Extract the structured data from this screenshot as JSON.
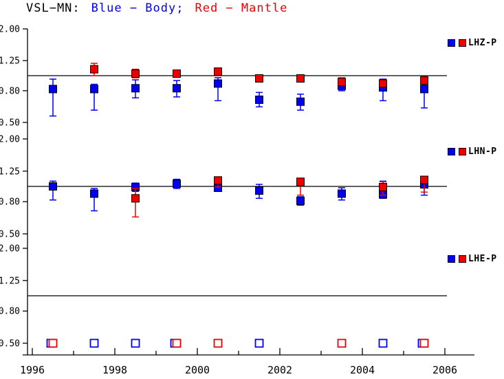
{
  "chart_data": {
    "type": "scatter",
    "title": {
      "prefix": "VSL−MN:",
      "body_label": "Blue − Body;",
      "mantle_label": "Red − Mantle"
    },
    "colors": {
      "body_blue": "#0000ee",
      "mantle_red": "#ee0000",
      "axis_black": "#000000"
    },
    "x_axis": {
      "min": 1996,
      "max": 2006,
      "major_ticks": [
        1996,
        1998,
        2000,
        2002,
        2004,
        2006
      ],
      "tick_labels": [
        "1996",
        "1998",
        "2000",
        "2002",
        "2004",
        "2006"
      ],
      "minor_ticks": [
        1997,
        1999,
        2001,
        2003,
        2005
      ]
    },
    "y_axis": {
      "scale": "log",
      "min": 0.5,
      "max": 2.0,
      "ticks": [
        2.0,
        1.25,
        0.8,
        0.5
      ],
      "tick_labels": [
        "2.00",
        "1.25",
        "0.80",
        "0.50"
      ],
      "reference_line": 1.0
    },
    "panels": [
      {
        "label": "LHZ-P",
        "blue_points": [
          {
            "x": 1996.5,
            "y": 0.82,
            "lo": 0.55,
            "hi": 0.95
          },
          {
            "x": 1997.5,
            "y": 0.82,
            "lo": 0.6,
            "hi": 0.88
          },
          {
            "x": 1998.5,
            "y": 0.83,
            "lo": 0.72,
            "hi": 0.94
          },
          {
            "x": 1999.5,
            "y": 0.83,
            "lo": 0.73,
            "hi": 0.93
          },
          {
            "x": 2000.5,
            "y": 0.89,
            "lo": 0.69,
            "hi": 0.97
          },
          {
            "x": 2001.5,
            "y": 0.7,
            "lo": 0.63,
            "hi": 0.78
          },
          {
            "x": 2002.5,
            "y": 0.68,
            "lo": 0.6,
            "hi": 0.76
          },
          {
            "x": 2003.5,
            "y": 0.86,
            "lo": 0.8,
            "hi": 0.92
          },
          {
            "x": 2004.5,
            "y": 0.84,
            "lo": 0.69,
            "hi": 0.95
          },
          {
            "x": 2005.5,
            "y": 0.82,
            "lo": 0.62,
            "hi": 0.95
          }
        ],
        "red_points": [
          {
            "x": 1997.5,
            "y": 1.1,
            "lo": 1.0,
            "hi": 1.2
          },
          {
            "x": 1998.5,
            "y": 1.03,
            "lo": 0.97,
            "hi": 1.1
          },
          {
            "x": 1999.5,
            "y": 1.03,
            "lo": 0.98,
            "hi": 1.08
          },
          {
            "x": 2000.5,
            "y": 1.06,
            "lo": 1.0,
            "hi": 1.12
          },
          {
            "x": 2001.5,
            "y": 0.96,
            "lo": 0.93,
            "hi": 1.0
          },
          {
            "x": 2002.5,
            "y": 0.96,
            "lo": 0.92,
            "hi": 1.0
          },
          {
            "x": 2003.5,
            "y": 0.91,
            "lo": 0.86,
            "hi": 0.97
          },
          {
            "x": 2004.5,
            "y": 0.89,
            "lo": 0.85,
            "hi": 0.93
          },
          {
            "x": 2005.5,
            "y": 0.93,
            "lo": 0.88,
            "hi": 0.99
          }
        ]
      },
      {
        "label": "LHN-P",
        "blue_points": [
          {
            "x": 1996.5,
            "y": 1.0,
            "lo": 0.82,
            "hi": 1.08
          },
          {
            "x": 1997.5,
            "y": 0.9,
            "lo": 0.7,
            "hi": 0.97
          },
          {
            "x": 1998.5,
            "y": 0.99,
            "lo": 0.93,
            "hi": 1.05
          },
          {
            "x": 1999.5,
            "y": 1.04,
            "lo": 0.97,
            "hi": 1.11
          },
          {
            "x": 2000.5,
            "y": 0.98,
            "lo": 0.93,
            "hi": 1.03
          },
          {
            "x": 2001.5,
            "y": 0.94,
            "lo": 0.84,
            "hi": 1.03
          },
          {
            "x": 2002.5,
            "y": 0.81,
            "lo": 0.76,
            "hi": 0.86
          },
          {
            "x": 2003.5,
            "y": 0.9,
            "lo": 0.82,
            "hi": 0.98
          },
          {
            "x": 2004.5,
            "y": 0.89,
            "lo": 0.84,
            "hi": 1.08
          },
          {
            "x": 2005.5,
            "y": 1.03,
            "lo": 0.88,
            "hi": 1.1
          }
        ],
        "red_points": [
          {
            "x": 1998.5,
            "y": 0.84,
            "lo": 0.64,
            "hi": 0.97
          },
          {
            "x": 2000.5,
            "y": 1.09,
            "lo": 0.99,
            "hi": 1.15
          },
          {
            "x": 2002.5,
            "y": 1.07,
            "lo": 0.88,
            "hi": 1.12
          },
          {
            "x": 2004.5,
            "y": 0.99,
            "lo": 0.88,
            "hi": 1.07
          },
          {
            "x": 2005.5,
            "y": 1.1,
            "lo": 0.92,
            "hi": 1.13
          }
        ]
      },
      {
        "label": "LHE-P",
        "blue_points": [
          {
            "x": 1996.45,
            "y": 0.5,
            "open": true
          },
          {
            "x": 1997.5,
            "y": 0.5,
            "open": true
          },
          {
            "x": 1998.5,
            "y": 0.5,
            "open": true
          },
          {
            "x": 1999.45,
            "y": 0.5,
            "open": true
          },
          {
            "x": 2001.5,
            "y": 0.5,
            "open": true
          },
          {
            "x": 2004.5,
            "y": 0.5,
            "open": true
          },
          {
            "x": 2005.45,
            "y": 0.5,
            "open": true
          }
        ],
        "red_points": [
          {
            "x": 1996.5,
            "y": 0.5,
            "open": true
          },
          {
            "x": 1999.5,
            "y": 0.5,
            "open": true
          },
          {
            "x": 2000.5,
            "y": 0.5,
            "open": true
          },
          {
            "x": 2003.5,
            "y": 0.5,
            "open": true
          },
          {
            "x": 2005.5,
            "y": 0.5,
            "open": true
          }
        ]
      }
    ]
  }
}
